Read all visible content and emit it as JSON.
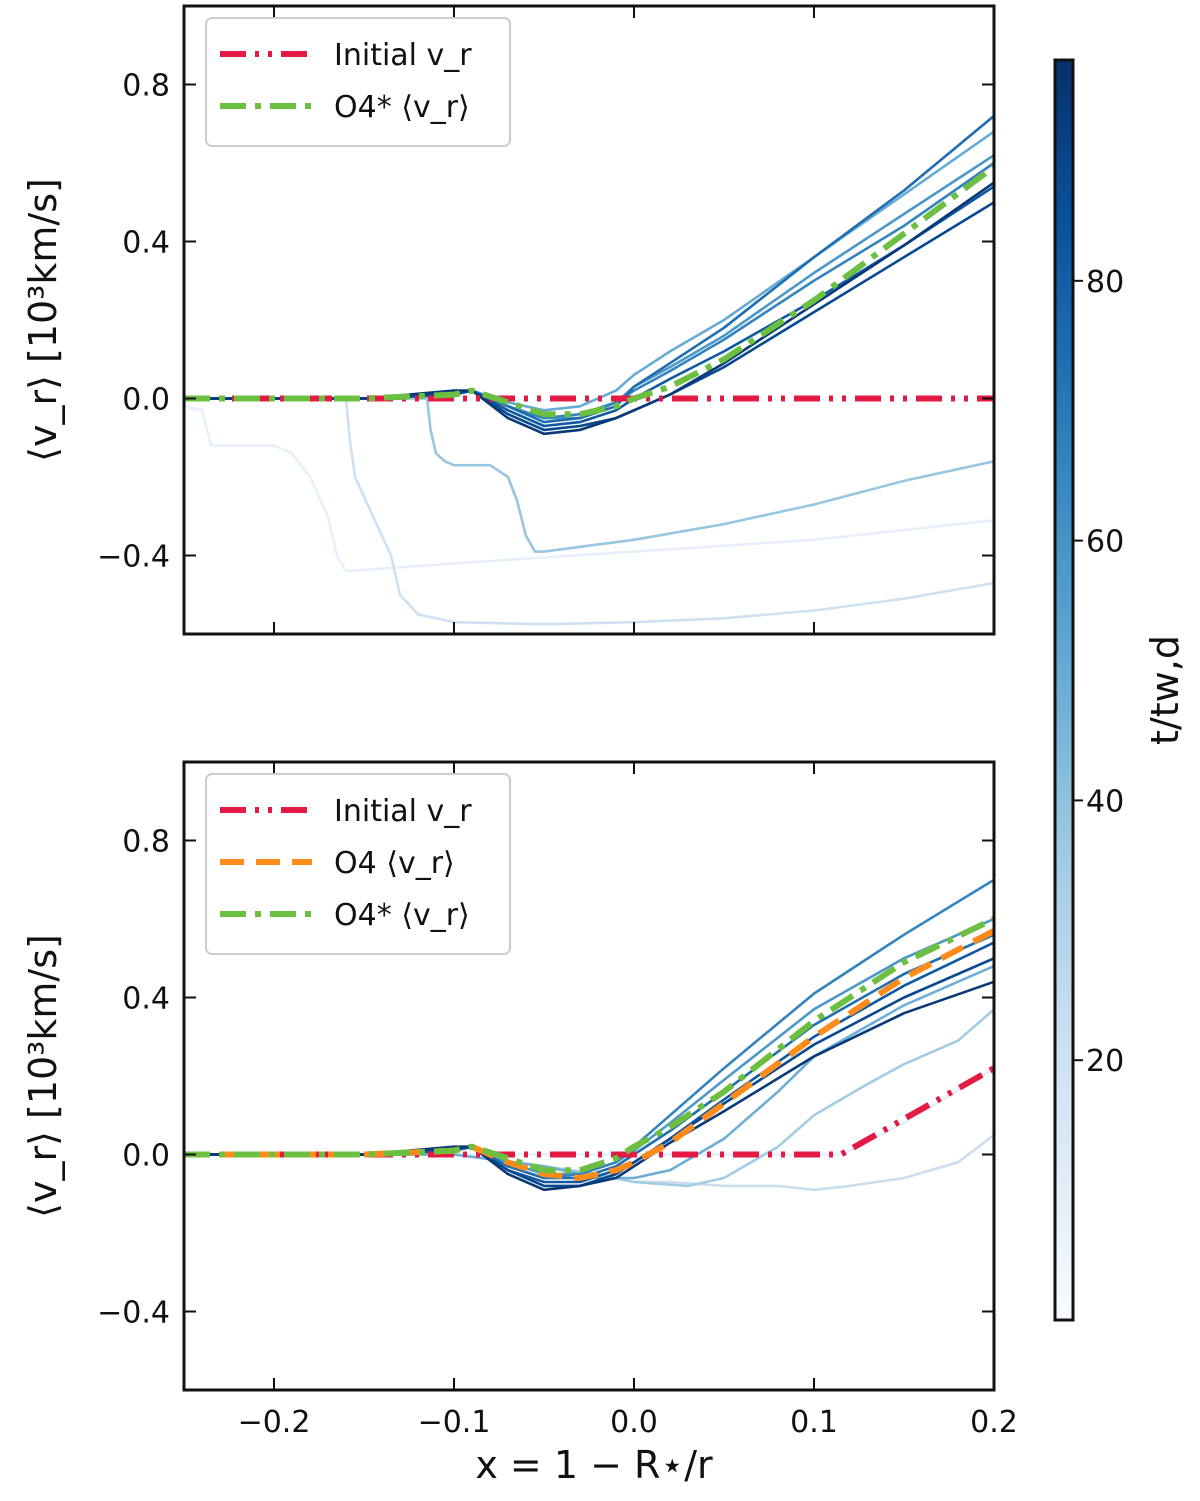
{
  "chart_data": {
    "type": "line",
    "shared_xlabel": "x = 1 − R⋆/r",
    "x_ticks": [
      -0.2,
      -0.1,
      0.0,
      0.1,
      0.2
    ],
    "xlim": [
      -0.25,
      0.2
    ],
    "ylim": [
      -0.6,
      1.0
    ],
    "y_ticks": [
      -0.4,
      0.0,
      0.4,
      0.8
    ],
    "colorbar": {
      "label": "t/t_{w,d}",
      "label_text": "t/tw,d",
      "min": 0,
      "max": 97,
      "ticks": [
        20,
        40,
        60,
        80
      ],
      "colormap": "Blues"
    },
    "colors": {
      "initial": "#e31a43",
      "o4": "#ff8c1a",
      "o4star": "#6cbf40"
    },
    "panels": [
      {
        "id": "top",
        "ylabel": "⟨v_r⟩ [10³km/s]",
        "legend": [
          {
            "label": "Initial v_r",
            "style": "dashdotdot",
            "color": "#e31a43"
          },
          {
            "label": "O4* ⟨v_r⟩",
            "style": "dashdot",
            "color": "#6cbf40"
          }
        ],
        "series": [
          {
            "name": "Initial v_r",
            "style": "dashdotdot",
            "color": "#e31a43",
            "x": [
              -0.25,
              0.2
            ],
            "y": [
              0.0,
              0.0
            ]
          },
          {
            "name": "O4* ⟨v_r⟩",
            "style": "dashdot",
            "color": "#6cbf40",
            "x": [
              -0.25,
              -0.15,
              -0.1,
              -0.09,
              -0.07,
              -0.05,
              -0.03,
              -0.01,
              0.0,
              0.02,
              0.05,
              0.1,
              0.15,
              0.2
            ],
            "y": [
              0.0,
              0.0,
              0.01,
              0.02,
              -0.01,
              -0.04,
              -0.04,
              -0.02,
              0.0,
              0.03,
              0.1,
              0.25,
              0.42,
              0.59
            ]
          }
        ],
        "time_series": [
          {
            "t": 8,
            "x": [
              -0.25,
              -0.24,
              -0.235,
              -0.2,
              -0.19,
              -0.18,
              -0.17,
              -0.165,
              -0.16,
              -0.1,
              0.0,
              0.1,
              0.2
            ],
            "y": [
              -0.02,
              -0.03,
              -0.12,
              -0.12,
              -0.14,
              -0.2,
              -0.3,
              -0.4,
              -0.44,
              -0.42,
              -0.39,
              -0.36,
              -0.31
            ]
          },
          {
            "t": 20,
            "x": [
              -0.25,
              -0.16,
              -0.158,
              -0.155,
              -0.15,
              -0.145,
              -0.14,
              -0.135,
              -0.13,
              -0.12,
              -0.1,
              -0.05,
              0.0,
              0.05,
              0.1,
              0.15,
              0.2
            ],
            "y": [
              0.0,
              0.0,
              -0.1,
              -0.2,
              -0.25,
              -0.3,
              -0.35,
              -0.4,
              -0.5,
              -0.55,
              -0.57,
              -0.575,
              -0.57,
              -0.56,
              -0.54,
              -0.51,
              -0.47
            ]
          },
          {
            "t": 38,
            "x": [
              -0.25,
              -0.115,
              -0.113,
              -0.11,
              -0.105,
              -0.1,
              -0.08,
              -0.07,
              -0.065,
              -0.06,
              -0.055,
              -0.05,
              0.0,
              0.05,
              0.1,
              0.15,
              0.2
            ],
            "y": [
              0.0,
              0.0,
              -0.08,
              -0.14,
              -0.16,
              -0.17,
              -0.17,
              -0.2,
              -0.26,
              -0.35,
              -0.39,
              -0.39,
              -0.36,
              -0.32,
              -0.27,
              -0.21,
              -0.16
            ]
          },
          {
            "t": 50,
            "x": [
              -0.25,
              -0.15,
              -0.1,
              -0.09,
              -0.07,
              -0.05,
              -0.03,
              -0.01,
              0.0,
              0.02,
              0.05,
              0.1,
              0.15,
              0.2
            ],
            "y": [
              0.0,
              0.0,
              0.01,
              0.02,
              -0.01,
              -0.03,
              -0.02,
              0.02,
              0.06,
              0.12,
              0.2,
              0.36,
              0.52,
              0.68
            ]
          },
          {
            "t": 58,
            "x": [
              -0.25,
              -0.15,
              -0.1,
              -0.09,
              -0.07,
              -0.05,
              -0.03,
              -0.01,
              0.0,
              0.02,
              0.05,
              0.1,
              0.15,
              0.2
            ],
            "y": [
              0.0,
              0.0,
              0.01,
              0.02,
              -0.02,
              -0.05,
              -0.05,
              -0.01,
              0.03,
              0.08,
              0.16,
              0.32,
              0.47,
              0.62
            ]
          },
          {
            "t": 66,
            "x": [
              -0.25,
              -0.15,
              -0.1,
              -0.09,
              -0.07,
              -0.05,
              -0.03,
              -0.01,
              0.0,
              0.02,
              0.05,
              0.1,
              0.15,
              0.2
            ],
            "y": [
              0.0,
              0.0,
              0.01,
              0.02,
              -0.02,
              -0.05,
              -0.04,
              -0.01,
              0.02,
              0.07,
              0.15,
              0.3,
              0.44,
              0.6
            ]
          },
          {
            "t": 74,
            "x": [
              -0.25,
              -0.15,
              -0.1,
              -0.09,
              -0.07,
              -0.05,
              -0.03,
              -0.01,
              0.0,
              0.02,
              0.05,
              0.1,
              0.15,
              0.2
            ],
            "y": [
              0.0,
              0.0,
              0.01,
              0.02,
              -0.02,
              -0.06,
              -0.05,
              -0.02,
              0.03,
              0.09,
              0.18,
              0.36,
              0.53,
              0.72
            ]
          },
          {
            "t": 82,
            "x": [
              -0.25,
              -0.15,
              -0.1,
              -0.09,
              -0.07,
              -0.05,
              -0.03,
              -0.01,
              0.0,
              0.02,
              0.05,
              0.1,
              0.15,
              0.2
            ],
            "y": [
              0.0,
              0.0,
              0.01,
              0.02,
              -0.03,
              -0.07,
              -0.06,
              -0.03,
              0.0,
              0.05,
              0.12,
              0.25,
              0.39,
              0.54
            ]
          },
          {
            "t": 88,
            "x": [
              -0.25,
              -0.15,
              -0.1,
              -0.09,
              -0.07,
              -0.05,
              -0.03,
              -0.01,
              0.0,
              0.02,
              0.05,
              0.1,
              0.15,
              0.2
            ],
            "y": [
              0.0,
              0.0,
              0.015,
              0.02,
              -0.04,
              -0.08,
              -0.07,
              -0.05,
              -0.03,
              0.01,
              0.08,
              0.22,
              0.36,
              0.5
            ]
          },
          {
            "t": 94,
            "x": [
              -0.25,
              -0.15,
              -0.1,
              -0.09,
              -0.07,
              -0.05,
              -0.03,
              -0.01,
              0.0,
              0.02,
              0.05,
              0.1,
              0.15,
              0.2
            ],
            "y": [
              0.0,
              0.0,
              0.02,
              0.02,
              -0.05,
              -0.09,
              -0.08,
              -0.05,
              -0.03,
              0.01,
              0.09,
              0.24,
              0.39,
              0.55
            ]
          }
        ]
      },
      {
        "id": "bottom",
        "ylabel": "⟨v_r⟩ [10³km/s]",
        "legend": [
          {
            "label": "Initial v_r",
            "style": "dashdotdot",
            "color": "#e31a43"
          },
          {
            "label": "O4 ⟨v_r⟩",
            "style": "dashed",
            "color": "#ff8c1a"
          },
          {
            "label": "O4* ⟨v_r⟩",
            "style": "dashdot",
            "color": "#6cbf40"
          }
        ],
        "series": [
          {
            "name": "Initial v_r",
            "style": "dashdotdot",
            "color": "#e31a43",
            "x": [
              -0.25,
              0.115,
              0.2
            ],
            "y": [
              0.0,
              0.0,
              0.22
            ]
          },
          {
            "name": "O4 ⟨v_r⟩",
            "style": "dashed",
            "color": "#ff8c1a",
            "x": [
              -0.25,
              -0.15,
              -0.1,
              -0.09,
              -0.07,
              -0.05,
              -0.03,
              -0.01,
              0.0,
              0.02,
              0.05,
              0.1,
              0.15,
              0.2
            ],
            "y": [
              0.0,
              0.0,
              0.01,
              0.02,
              -0.02,
              -0.05,
              -0.06,
              -0.04,
              -0.02,
              0.03,
              0.13,
              0.3,
              0.45,
              0.57
            ]
          },
          {
            "name": "O4* ⟨v_r⟩",
            "style": "dashdot",
            "color": "#6cbf40",
            "x": [
              -0.25,
              -0.15,
              -0.1,
              -0.09,
              -0.07,
              -0.05,
              -0.03,
              -0.01,
              0.0,
              0.02,
              0.05,
              0.1,
              0.15,
              0.2
            ],
            "y": [
              0.0,
              0.0,
              0.01,
              0.02,
              -0.01,
              -0.04,
              -0.04,
              -0.01,
              0.02,
              0.07,
              0.16,
              0.34,
              0.49,
              0.6
            ]
          }
        ],
        "time_series": [
          {
            "t": 8,
            "x": [
              -0.25,
              -0.1,
              0.0,
              0.05,
              0.1,
              0.115,
              0.15,
              0.2
            ],
            "y": [
              0.0,
              0.0,
              0.0,
              0.0,
              0.0,
              0.0,
              0.08,
              0.22
            ]
          },
          {
            "t": 22,
            "x": [
              -0.25,
              -0.1,
              -0.05,
              0.0,
              0.02,
              0.05,
              0.08,
              0.1,
              0.12,
              0.15,
              0.18,
              0.2
            ],
            "y": [
              0.0,
              0.0,
              -0.03,
              -0.07,
              -0.07,
              -0.08,
              -0.08,
              -0.09,
              -0.08,
              -0.06,
              -0.02,
              0.05
            ]
          },
          {
            "t": 35,
            "x": [
              -0.25,
              -0.1,
              -0.05,
              -0.02,
              0.0,
              0.03,
              0.05,
              0.08,
              0.1,
              0.13,
              0.15,
              0.18,
              0.2
            ],
            "y": [
              0.0,
              0.0,
              -0.03,
              -0.05,
              -0.07,
              -0.08,
              -0.06,
              0.02,
              0.1,
              0.18,
              0.23,
              0.29,
              0.37
            ]
          },
          {
            "t": 48,
            "x": [
              -0.25,
              -0.1,
              -0.05,
              -0.02,
              0.0,
              0.02,
              0.05,
              0.08,
              0.1,
              0.15,
              0.2
            ],
            "y": [
              0.0,
              0.0,
              -0.03,
              -0.06,
              -0.06,
              -0.04,
              0.04,
              0.16,
              0.25,
              0.38,
              0.48
            ]
          },
          {
            "t": 58,
            "x": [
              -0.25,
              -0.15,
              -0.1,
              -0.09,
              -0.07,
              -0.05,
              -0.03,
              -0.01,
              0.0,
              0.02,
              0.05,
              0.1,
              0.15,
              0.2
            ],
            "y": [
              0.0,
              0.0,
              0.01,
              0.02,
              -0.02,
              -0.05,
              -0.05,
              -0.02,
              0.01,
              0.08,
              0.19,
              0.37,
              0.5,
              0.6
            ]
          },
          {
            "t": 66,
            "x": [
              -0.25,
              -0.15,
              -0.1,
              -0.09,
              -0.07,
              -0.05,
              -0.03,
              -0.01,
              0.0,
              0.02,
              0.05,
              0.1,
              0.15,
              0.2
            ],
            "y": [
              0.0,
              0.0,
              0.01,
              0.02,
              -0.03,
              -0.06,
              -0.05,
              -0.02,
              0.02,
              0.1,
              0.22,
              0.41,
              0.56,
              0.7
            ]
          },
          {
            "t": 74,
            "x": [
              -0.25,
              -0.15,
              -0.1,
              -0.09,
              -0.07,
              -0.05,
              -0.03,
              -0.01,
              0.0,
              0.02,
              0.05,
              0.1,
              0.15,
              0.2
            ],
            "y": [
              0.0,
              0.0,
              0.01,
              0.02,
              -0.03,
              -0.06,
              -0.06,
              -0.03,
              0.0,
              0.06,
              0.16,
              0.33,
              0.46,
              0.56
            ]
          },
          {
            "t": 82,
            "x": [
              -0.25,
              -0.15,
              -0.1,
              -0.09,
              -0.07,
              -0.05,
              -0.03,
              -0.01,
              0.0,
              0.02,
              0.05,
              0.1,
              0.15,
              0.2
            ],
            "y": [
              0.0,
              0.0,
              0.01,
              0.02,
              -0.04,
              -0.07,
              -0.07,
              -0.04,
              -0.02,
              0.04,
              0.14,
              0.3,
              0.43,
              0.54
            ]
          },
          {
            "t": 88,
            "x": [
              -0.25,
              -0.15,
              -0.1,
              -0.09,
              -0.07,
              -0.05,
              -0.03,
              -0.01,
              0.0,
              0.02,
              0.05,
              0.1,
              0.15,
              0.2
            ],
            "y": [
              0.0,
              0.0,
              0.015,
              0.02,
              -0.04,
              -0.08,
              -0.08,
              -0.05,
              -0.02,
              0.04,
              0.13,
              0.28,
              0.4,
              0.5
            ]
          },
          {
            "t": 94,
            "x": [
              -0.25,
              -0.15,
              -0.1,
              -0.09,
              -0.07,
              -0.05,
              -0.03,
              -0.01,
              0.0,
              0.02,
              0.05,
              0.1,
              0.15,
              0.2
            ],
            "y": [
              0.0,
              0.0,
              0.02,
              0.02,
              -0.05,
              -0.09,
              -0.08,
              -0.06,
              -0.03,
              0.03,
              0.11,
              0.25,
              0.36,
              0.44
            ]
          }
        ]
      }
    ]
  }
}
